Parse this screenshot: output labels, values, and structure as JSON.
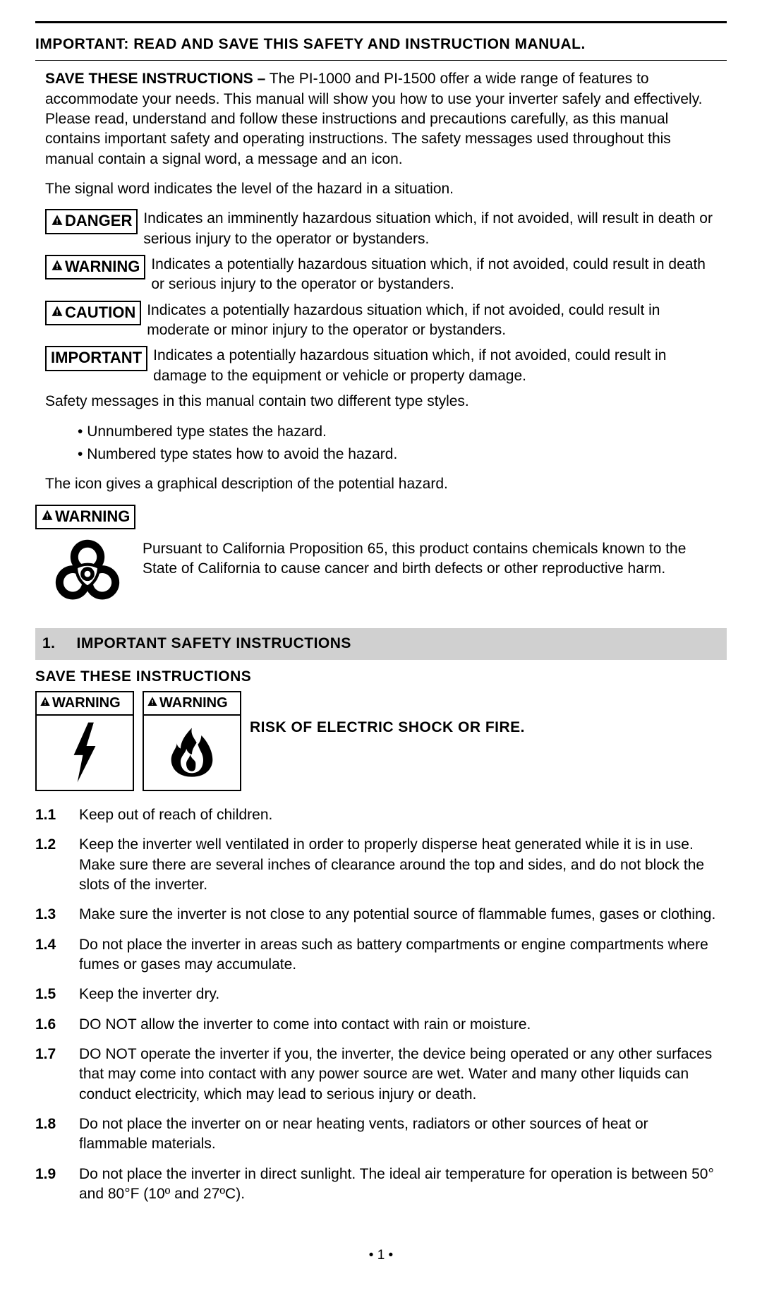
{
  "header_title": "IMPORTANT: READ AND SAVE THIS SAFETY AND INSTRUCTION MANUAL.",
  "intro": {
    "lead_bold": "SAVE THESE INSTRUCTIONS –",
    "lead_rest": " The PI-1000 and PI-1500 offer a wide range of features to accommodate your needs. This manual will show you how to use your inverter safely and effectively. Please read, understand and follow these instructions and precautions carefully, as this manual contains important safety and operating instructions. The safety messages used throughout this manual contain a signal word, a message and an icon.",
    "p2": "The signal word indicates the level of the hazard in a situation."
  },
  "signals": [
    {
      "word": "DANGER",
      "has_icon": true,
      "desc": "Indicates an imminently hazardous situation which, if not avoided, will result in death or serious injury to the operator or bystanders."
    },
    {
      "word": "WARNING",
      "has_icon": true,
      "desc": "Indicates a potentially hazardous situation which, if not avoided, could result in death or serious injury to the operator or bystanders."
    },
    {
      "word": "CAUTION",
      "has_icon": true,
      "desc": "Indicates a potentially hazardous situation which, if not avoided, could result in moderate or minor injury to the operator or bystanders."
    },
    {
      "word": "IMPORTANT",
      "has_icon": false,
      "desc": "Indicates a potentially hazardous situation which, if not avoided, could result in damage to the equipment or vehicle or property damage."
    }
  ],
  "p_after_signals": "Safety messages in this manual contain two different type styles.",
  "bullets": [
    "Unnumbered type states the hazard.",
    "Numbered type states how to avoid the hazard."
  ],
  "p_after_bullets": "The icon gives a graphical description of the potential hazard.",
  "prop65": {
    "signal": "WARNING",
    "text": "Pursuant to California Proposition 65, this product contains chemicals known to the State of California to cause cancer and birth defects or other reproductive harm."
  },
  "section1": {
    "num": "1.",
    "title": "IMPORTANT SAFETY INSTRUCTIONS",
    "save": "SAVE THESE INSTRUCTIONS",
    "card_label": "WARNING",
    "risk": "RISK OF ELECTRIC SHOCK OR FIRE."
  },
  "items": [
    {
      "n": "1.1",
      "t": "Keep out of reach of children."
    },
    {
      "n": "1.2",
      "t": "Keep the inverter well ventilated in order to properly disperse heat generated while it is in use. Make sure there are several inches of clearance around the top and sides, and do not block the slots of the inverter."
    },
    {
      "n": "1.3",
      "t": "Make sure the inverter is not close to any potential source of flammable fumes, gases or clothing."
    },
    {
      "n": "1.4",
      "t": "Do not place the inverter in areas such as battery compartments or engine compartments where fumes or gases may accumulate."
    },
    {
      "n": "1.5",
      "t": "Keep the inverter dry."
    },
    {
      "n": "1.6",
      "t": "DO NOT allow the inverter to come into contact with rain or moisture."
    },
    {
      "n": "1.7",
      "t": "DO NOT operate the inverter if you, the inverter, the device being operated or any other surfaces that may come into contact with any power source are wet. Water and many other liquids can conduct electricity, which may lead to serious injury or death."
    },
    {
      "n": "1.8",
      "t": "Do not place the inverter on or near heating vents, radiators or other sources of heat or flammable materials."
    },
    {
      "n": "1.9",
      "t": "Do not place the inverter in direct sunlight. The ideal air temperature for operation is between 50° and 80°F (10º and 27ºC)."
    }
  ],
  "page_number": "• 1 •",
  "colors": {
    "section_bar_bg": "#d0d0d0",
    "text": "#000000",
    "bg": "#ffffff"
  },
  "icons": {
    "biohazard": "biohazard-icon",
    "shock": "shock-icon",
    "fire": "fire-icon",
    "triangle": "warning-triangle-icon"
  }
}
